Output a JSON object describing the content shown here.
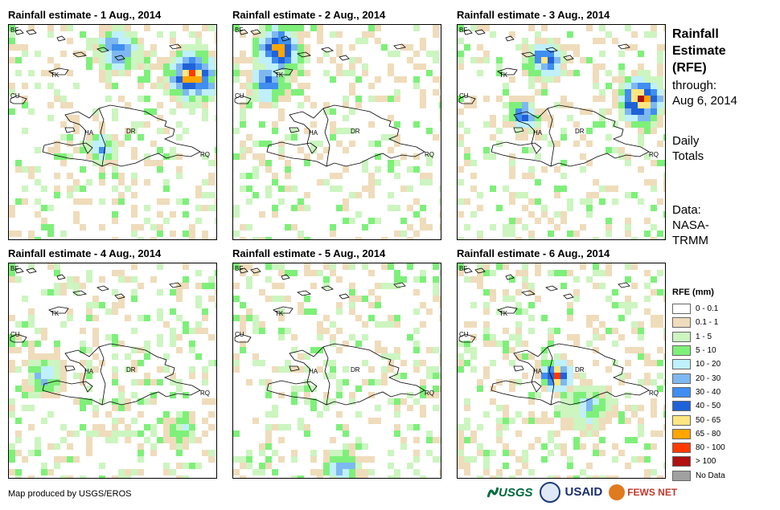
{
  "panels": [
    {
      "title": "Rainfall estimate - 1 Aug., 2014",
      "seed": 11,
      "focus": [
        [
          0.85,
          0.22,
          0.16,
          10
        ],
        [
          0.5,
          0.1,
          0.14,
          7
        ],
        [
          0.42,
          0.55,
          0.1,
          6
        ]
      ]
    },
    {
      "title": "Rainfall estimate - 2 Aug., 2014",
      "seed": 23,
      "focus": [
        [
          0.2,
          0.1,
          0.14,
          10
        ],
        [
          0.15,
          0.25,
          0.13,
          7
        ]
      ]
    },
    {
      "title": "Rainfall estimate - 3 Aug., 2014",
      "seed": 37,
      "focus": [
        [
          0.85,
          0.33,
          0.14,
          11
        ],
        [
          0.4,
          0.15,
          0.12,
          8
        ],
        [
          0.3,
          0.4,
          0.1,
          7
        ]
      ]
    },
    {
      "title": "Rainfall estimate - 4 Aug., 2014",
      "seed": 41,
      "focus": [
        [
          0.15,
          0.5,
          0.12,
          5
        ],
        [
          0.8,
          0.75,
          0.1,
          4
        ]
      ]
    },
    {
      "title": "Rainfall estimate - 5 Aug., 2014",
      "seed": 53,
      "focus": [
        [
          0.5,
          0.92,
          0.12,
          6
        ]
      ]
    },
    {
      "title": "Rainfall estimate - 6 Aug., 2014",
      "seed": 67,
      "focus": [
        [
          0.45,
          0.5,
          0.1,
          11
        ],
        [
          0.6,
          0.65,
          0.14,
          5
        ]
      ]
    }
  ],
  "map_labels": {
    "bf": "BF",
    "tk": "TK",
    "cu": "CU",
    "ha": "HA",
    "dr": "DR",
    "rq": "RQ"
  },
  "sidebar": {
    "heading_line1": "Rainfall",
    "heading_line2": "Estimate",
    "heading_line3": "(RFE)",
    "through_label": "through:",
    "through_date": "Aug 6, 2014",
    "totals_line1": "Daily",
    "totals_line2": "Totals",
    "data_line1": "Data:",
    "data_line2": "NASA-",
    "data_line3": "TRMM"
  },
  "legend": {
    "title": "RFE (mm)",
    "items": [
      {
        "label": "0 - 0.1",
        "color": "#ffffff"
      },
      {
        "label": "0.1 - 1",
        "color": "#efdcbb"
      },
      {
        "label": "1 - 5",
        "color": "#ccf5c0"
      },
      {
        "label": "5 - 10",
        "color": "#7ef07a"
      },
      {
        "label": "10 - 20",
        "color": "#bff0fb"
      },
      {
        "label": "20 - 30",
        "color": "#7eb8f0"
      },
      {
        "label": "30 - 40",
        "color": "#3f8ef0"
      },
      {
        "label": "40 - 50",
        "color": "#1f62d8"
      },
      {
        "label": "50 - 65",
        "color": "#ffe680"
      },
      {
        "label": "65 - 80",
        "color": "#ffa500"
      },
      {
        "label": "80 - 100",
        "color": "#ff3a00"
      },
      {
        "label": "> 100",
        "color": "#b01010"
      },
      {
        "label": "No Data",
        "color": "#a0a0a0"
      }
    ]
  },
  "footer": {
    "credit": "Map produced by USGS/EROS"
  },
  "logos": {
    "usgs": "USGS",
    "usaid": "USAID",
    "fews": "FEWS NET"
  }
}
